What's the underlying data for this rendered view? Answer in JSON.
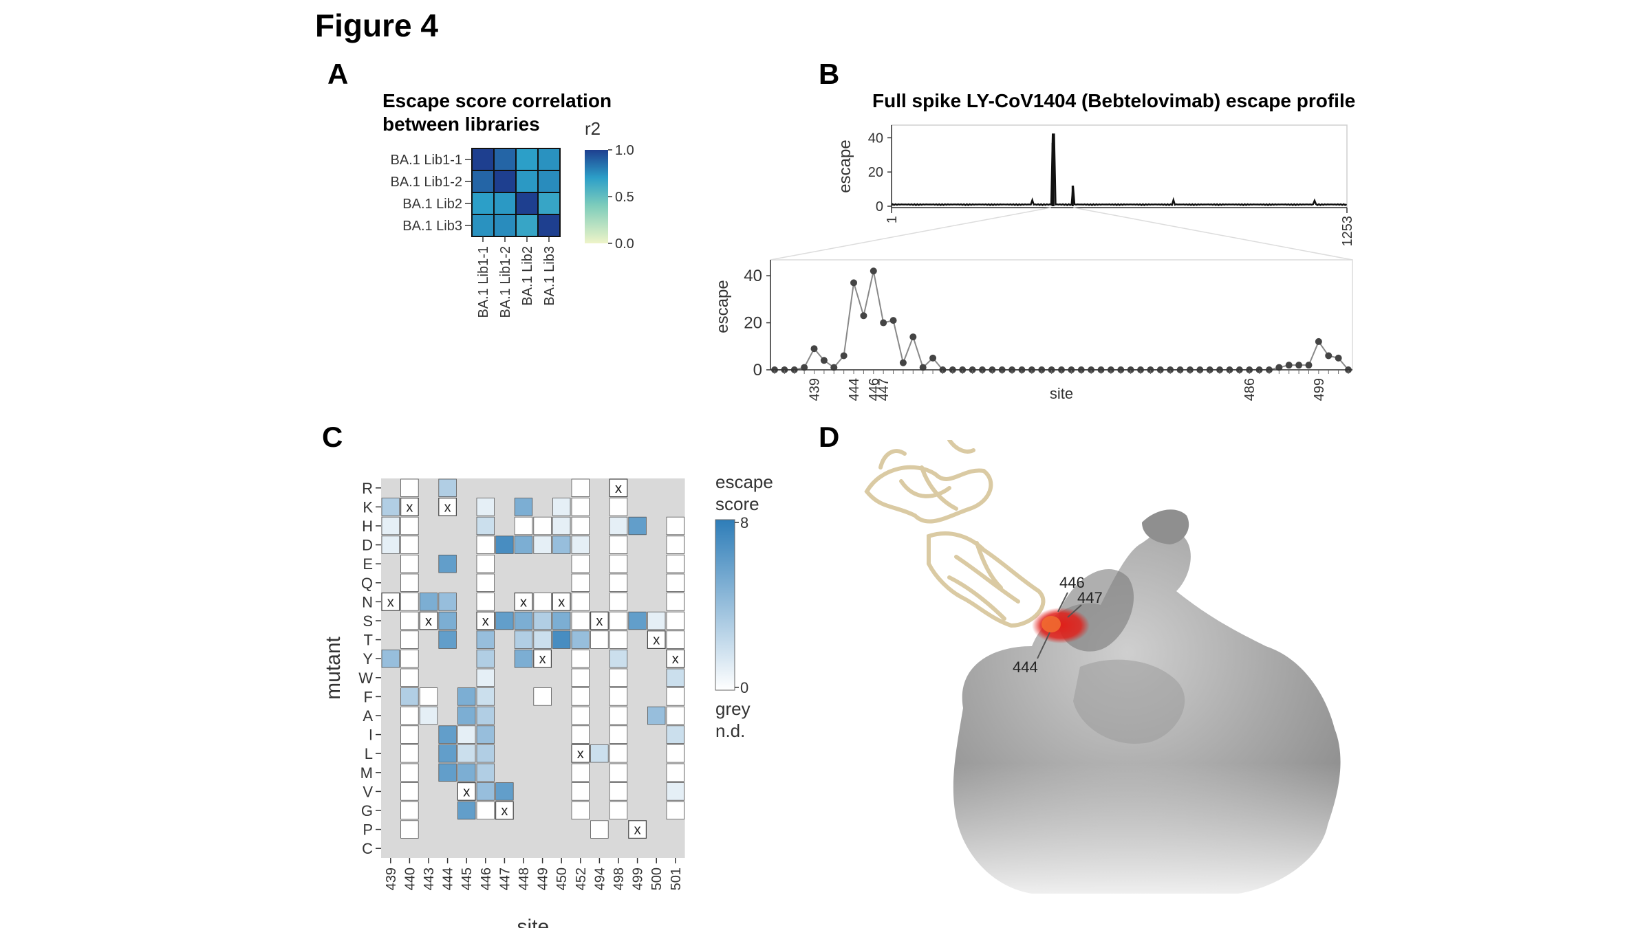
{
  "figure": {
    "title": "Figure 4"
  },
  "colors": {
    "heat_high": "#1e3f8f",
    "heat_low": "#eef4c8",
    "escape_high": "#2e7db8",
    "escape_low": "#ffffff",
    "not_determined": "#d9d9d9",
    "highlight_red": "#e0201a"
  },
  "panel_a": {
    "letter": "A",
    "title_line1": "Escape score correlation",
    "title_line2": "between libraries",
    "legend_title": "r2",
    "legend_ticks": [
      "1.0",
      "0.5",
      "0.0"
    ],
    "chart_data": {
      "type": "heatmap",
      "title": "Escape score correlation between libraries",
      "rows": [
        "BA.1 Lib1-1",
        "BA.1 Lib1-2",
        "BA.1 Lib2",
        "BA.1 Lib3"
      ],
      "cols": [
        "BA.1 Lib1-1",
        "BA.1 Lib1-2",
        "BA.1 Lib2",
        "BA.1 Lib3"
      ],
      "values": [
        [
          1.0,
          0.88,
          0.7,
          0.74
        ],
        [
          0.88,
          1.0,
          0.72,
          0.76
        ],
        [
          0.7,
          0.72,
          1.0,
          0.66
        ],
        [
          0.74,
          0.76,
          0.66,
          1.0
        ]
      ],
      "scale": {
        "label": "r2",
        "min": 0.0,
        "max": 1.0
      }
    }
  },
  "panel_b": {
    "letter": "B",
    "title": "Full spike LY-CoV1404 (Bebtelovimab) escape profile",
    "top_ylabel": "escape",
    "top_yticks": [
      "40",
      "20",
      "0"
    ],
    "top_xticks": [
      "1",
      "1253"
    ],
    "bottom_ylabel": "escape",
    "bottom_yticks": [
      "40",
      "20",
      "0"
    ],
    "bottom_xticks": [
      "439",
      "444",
      "446",
      "447",
      "486",
      "499"
    ],
    "bottom_xlabel": "site",
    "chart_data": {
      "type": "line",
      "title": "Full spike LY-CoV1404 (Bebtelovimab) escape profile",
      "ylabel": "escape",
      "overview": {
        "xlim": [
          1,
          1253
        ],
        "ylim": [
          0,
          45
        ],
        "peaks": [
          {
            "x": 444,
            "y": 37
          },
          {
            "x": 446,
            "y": 42
          },
          {
            "x": 499,
            "y": 12
          }
        ]
      },
      "zoom": {
        "xlabel": "site",
        "ylim": [
          0,
          45
        ],
        "y": [
          0,
          0,
          0,
          1,
          9,
          4,
          1,
          6,
          37,
          23,
          42,
          20,
          21,
          3,
          14,
          1,
          5,
          0,
          0,
          0,
          0,
          0,
          0,
          0,
          0,
          0,
          0,
          0,
          0,
          0,
          0,
          0,
          0,
          0,
          0,
          0,
          0,
          0,
          0,
          0,
          0,
          0,
          0,
          0,
          0,
          0,
          0,
          0,
          0,
          0,
          0,
          1,
          2,
          2,
          2,
          12,
          6,
          5,
          0
        ],
        "labeled_sites": [
          {
            "site": "439",
            "index": 4
          },
          {
            "site": "444",
            "index": 8
          },
          {
            "site": "446",
            "index": 10
          },
          {
            "site": "447",
            "index": 11
          },
          {
            "site": "486",
            "index": 48
          },
          {
            "site": "499",
            "index": 55
          }
        ]
      }
    }
  },
  "panel_c": {
    "letter": "C",
    "ylabel": "mutant",
    "xlabel": "site",
    "legend_title_line1": "escape",
    "legend_title_line2": "score",
    "legend_max": "8",
    "legend_min": "0",
    "legend_grey_line1": "grey",
    "legend_grey_line2": "n.d.",
    "wildtype_marker": "x",
    "chart_data": {
      "type": "heatmap",
      "xlabel": "site",
      "ylabel": "mutant",
      "sites": [
        "439",
        "440",
        "443",
        "444",
        "445",
        "446",
        "447",
        "448",
        "449",
        "450",
        "452",
        "494",
        "498",
        "499",
        "500",
        "501"
      ],
      "mutants": [
        "R",
        "K",
        "H",
        "D",
        "E",
        "Q",
        "N",
        "S",
        "T",
        "Y",
        "W",
        "F",
        "A",
        "I",
        "L",
        "M",
        "V",
        "G",
        "P",
        "C"
      ],
      "value_range": [
        0,
        8
      ],
      "note": "null = not determined (grey); -1 = wildtype residue (x)",
      "values": [
        [
          null,
          0,
          null,
          3,
          null,
          null,
          null,
          null,
          null,
          null,
          0,
          null,
          -1,
          null,
          null,
          null
        ],
        [
          3,
          -1,
          null,
          -1,
          null,
          1,
          null,
          5,
          null,
          1,
          0,
          null,
          0,
          null,
          null,
          null
        ],
        [
          1,
          0,
          null,
          null,
          null,
          2,
          null,
          0,
          0,
          1,
          0,
          null,
          1,
          6,
          null,
          0
        ],
        [
          1,
          0,
          null,
          null,
          null,
          0,
          7,
          5,
          1,
          4,
          1,
          null,
          0,
          null,
          null,
          0
        ],
        [
          null,
          0,
          null,
          6,
          null,
          0,
          null,
          null,
          null,
          null,
          0,
          null,
          0,
          null,
          null,
          0
        ],
        [
          null,
          0,
          null,
          null,
          null,
          0,
          null,
          null,
          null,
          null,
          0,
          null,
          0,
          null,
          null,
          0
        ],
        [
          -1,
          0,
          5,
          4,
          null,
          0,
          null,
          -1,
          0,
          -1,
          0,
          null,
          0,
          null,
          null,
          0
        ],
        [
          null,
          0,
          -1,
          5,
          null,
          -1,
          6,
          5,
          3,
          5,
          0,
          -1,
          0,
          6,
          1,
          0
        ],
        [
          null,
          0,
          null,
          6,
          null,
          4,
          null,
          3,
          2,
          7,
          4,
          0,
          0,
          null,
          -1,
          0
        ],
        [
          4,
          0,
          null,
          null,
          null,
          3,
          null,
          5,
          -1,
          null,
          0,
          null,
          2,
          null,
          null,
          -1
        ],
        [
          null,
          0,
          null,
          null,
          null,
          1,
          null,
          null,
          null,
          null,
          0,
          null,
          0,
          null,
          null,
          2
        ],
        [
          null,
          3,
          0,
          null,
          5,
          2,
          null,
          null,
          0,
          null,
          0,
          null,
          0,
          null,
          null,
          0
        ],
        [
          null,
          0,
          1,
          null,
          5,
          3,
          null,
          null,
          null,
          null,
          0,
          null,
          0,
          null,
          4,
          0
        ],
        [
          null,
          0,
          null,
          6,
          1,
          4,
          null,
          null,
          null,
          null,
          0,
          null,
          0,
          null,
          null,
          2
        ],
        [
          null,
          0,
          null,
          6,
          2,
          3,
          null,
          null,
          null,
          null,
          -1,
          2,
          0,
          null,
          null,
          0
        ],
        [
          null,
          0,
          null,
          6,
          5,
          3,
          null,
          null,
          null,
          null,
          0,
          null,
          0,
          null,
          null,
          0
        ],
        [
          null,
          0,
          null,
          null,
          -1,
          4,
          6,
          null,
          null,
          null,
          0,
          null,
          0,
          null,
          null,
          1
        ],
        [
          null,
          0,
          null,
          null,
          6,
          0,
          -1,
          null,
          null,
          null,
          0,
          null,
          0,
          null,
          null,
          0
        ],
        [
          null,
          0,
          null,
          null,
          null,
          null,
          null,
          null,
          null,
          null,
          null,
          0,
          null,
          -1,
          null,
          null
        ],
        [
          null,
          null,
          null,
          null,
          null,
          null,
          null,
          null,
          null,
          null,
          null,
          null,
          null,
          null,
          null,
          null
        ]
      ]
    }
  },
  "panel_d": {
    "letter": "D",
    "site_labels": [
      "446",
      "447",
      "444"
    ]
  }
}
